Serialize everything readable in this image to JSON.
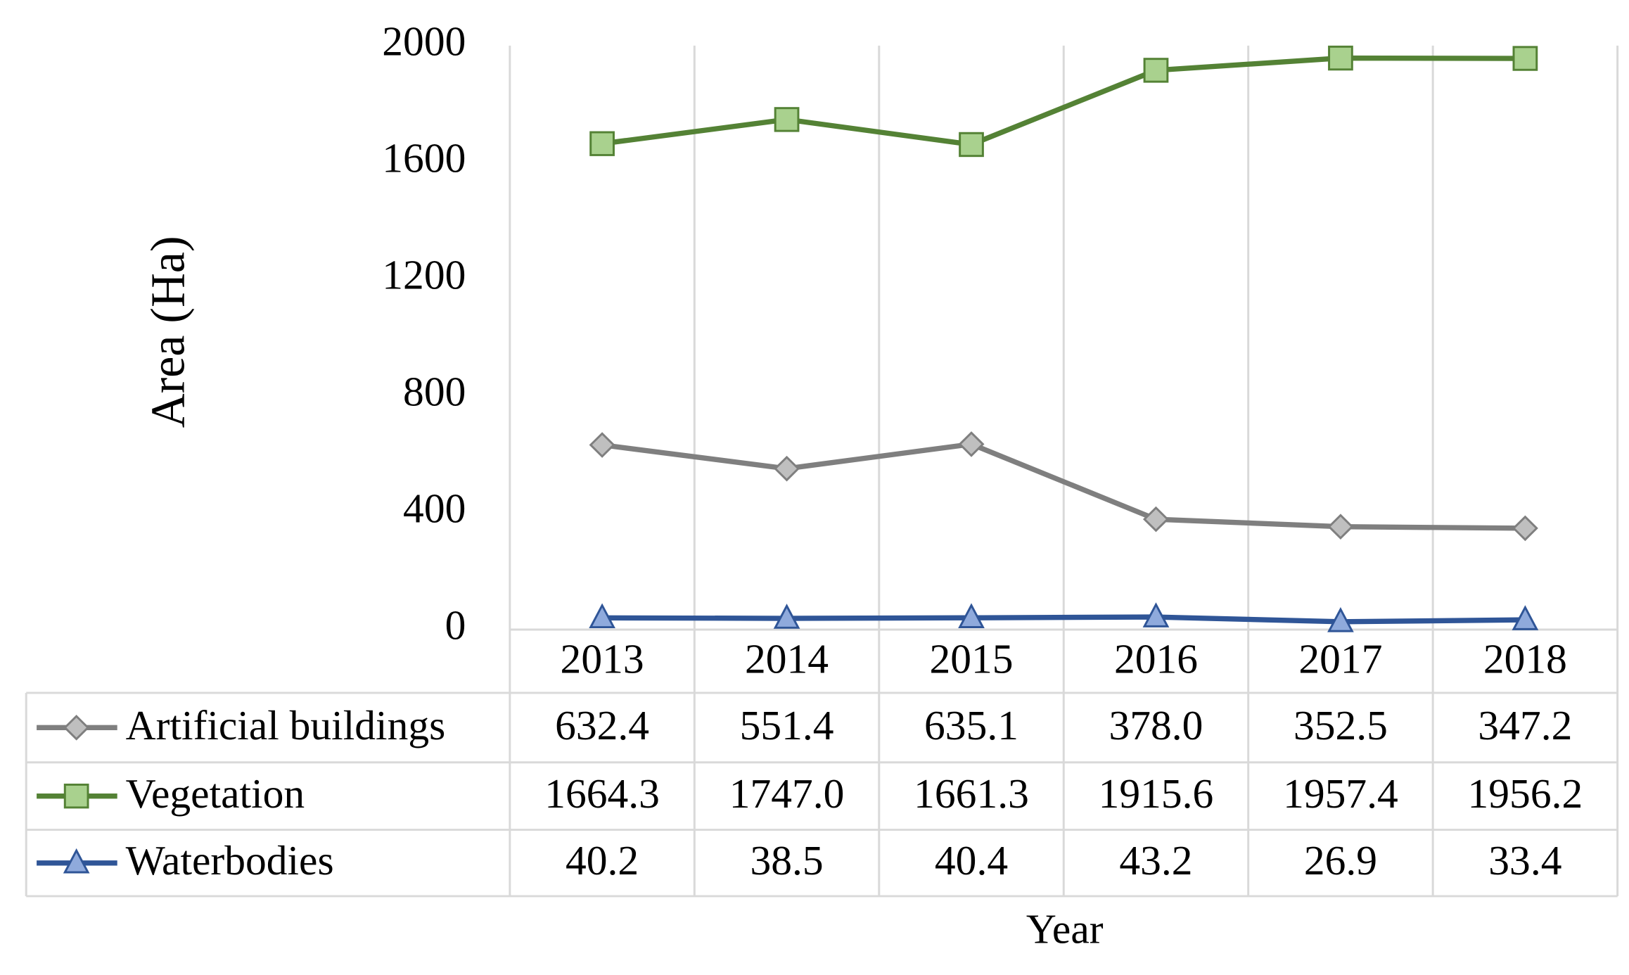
{
  "chart_data": {
    "type": "line",
    "x_label": "Year",
    "y_label": "Area (Ha)",
    "categories": [
      "2013",
      "2014",
      "2015",
      "2016",
      "2017",
      "2018"
    ],
    "series": [
      {
        "name": "Artificial buildings",
        "color": "#7f7f7f",
        "marker": "diamond",
        "marker_fill": "#bfbfbf",
        "values": [
          632.4,
          551.4,
          635.1,
          378.0,
          352.5,
          347.2
        ],
        "value_labels": [
          "632.4",
          "551.4",
          "635.1",
          "378.0",
          "352.5",
          "347.2"
        ]
      },
      {
        "name": "Vegetation",
        "color": "#548235",
        "marker": "square",
        "marker_fill": "#a9d18e",
        "values": [
          1664.3,
          1747.0,
          1661.3,
          1915.6,
          1957.4,
          1956.2
        ],
        "value_labels": [
          "1664.3",
          "1747.0",
          "1661.3",
          "1915.6",
          "1957.4",
          "1956.2"
        ]
      },
      {
        "name": "Waterbodies",
        "color": "#2f5597",
        "marker": "triangle",
        "marker_fill": "#8faadc",
        "values": [
          40.2,
          38.5,
          40.4,
          43.2,
          26.9,
          33.4
        ],
        "value_labels": [
          "40.2",
          "38.5",
          "40.4",
          "43.2",
          "26.9",
          "33.4"
        ]
      }
    ],
    "ylim": [
      0,
      2000
    ],
    "yticks": [
      0,
      400,
      800,
      1200,
      1600,
      2000
    ]
  }
}
